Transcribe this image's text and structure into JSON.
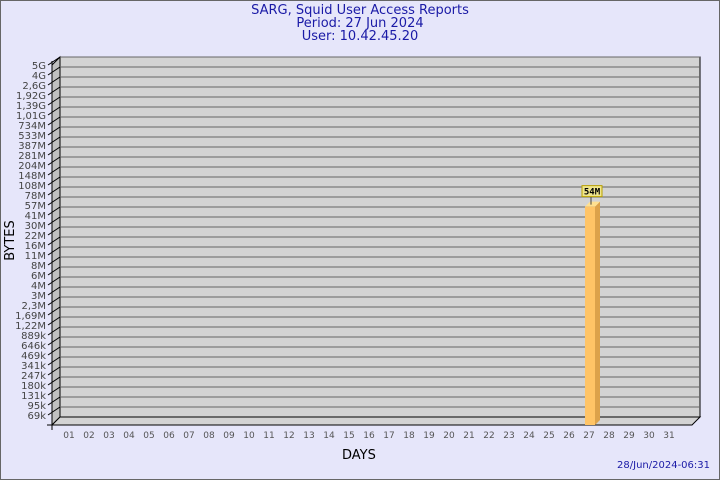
{
  "chart_data": {
    "type": "bar",
    "title": "SARG, Squid User Access Reports",
    "subtitle": [
      "Period: 27 Jun 2024",
      "User: 10.42.45.20"
    ],
    "xlabel": "DAYS",
    "ylabel": "BYTES",
    "y_scale": "log",
    "grid": true,
    "categories": [
      "01",
      "02",
      "03",
      "04",
      "05",
      "06",
      "07",
      "08",
      "09",
      "10",
      "11",
      "12",
      "13",
      "14",
      "15",
      "16",
      "17",
      "18",
      "19",
      "20",
      "21",
      "22",
      "23",
      "24",
      "25",
      "26",
      "27",
      "28",
      "29",
      "30",
      "31"
    ],
    "y_tick_labels": [
      "5G",
      "4G",
      "2,6G",
      "1,92G",
      "1,39G",
      "1,01G",
      "734M",
      "533M",
      "387M",
      "281M",
      "204M",
      "148M",
      "108M",
      "78M",
      "57M",
      "41M",
      "30M",
      "22M",
      "16M",
      "11M",
      "8M",
      "6M",
      "4M",
      "3M",
      "2,3M",
      "1,69M",
      "1,22M",
      "889k",
      "646k",
      "469k",
      "341k",
      "247k",
      "180k",
      "131k",
      "95k",
      "69k"
    ],
    "y_range_bytes": [
      69000,
      5000000000
    ],
    "series": [
      {
        "points": [
          {
            "day": "27",
            "value": 54000000,
            "label": "54M"
          }
        ]
      }
    ],
    "colors": {
      "bar": "#ffc466",
      "bar_side": "#dca24a",
      "bar_top": "#ffe08f",
      "plot_bg": "#d3d3d3",
      "grid": "#666666",
      "label_bg": "#f0e68c"
    }
  },
  "footer": {
    "timestamp": "28/Jun/2024-06:31"
  }
}
